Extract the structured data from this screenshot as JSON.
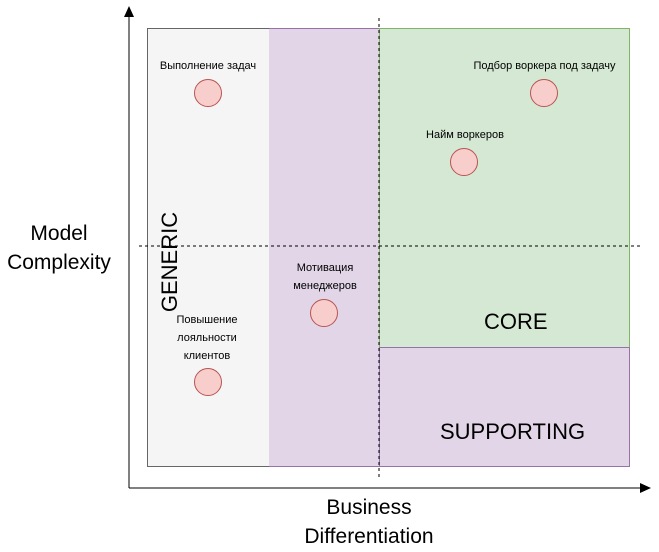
{
  "axes": {
    "y_title_line1": "Model",
    "y_title_line2": "Complexity",
    "x_title_line1": "Business",
    "x_title_line2": "Differentiation"
  },
  "regions": {
    "generic": "GENERIC",
    "core": "CORE",
    "supporting": "SUPPORTING"
  },
  "items": {
    "task_execution": "Выполнение задач",
    "worker_matching": "Подбор воркера под задачу",
    "worker_hiring": "Найм воркеров",
    "manager_motivation_line1": "Мотивация",
    "manager_motivation_line2": "менеджеров",
    "loyalty_line1": "Повышение",
    "loyalty_line2": "лояльности",
    "loyalty_line3": "клиентов"
  },
  "colors": {
    "generic_fill": "#f5f5f5",
    "supporting_fill": "#e1d5e7",
    "core_fill": "#d5e8d4",
    "dot_fill": "#f8cecc",
    "dot_stroke": "#b85450"
  }
}
